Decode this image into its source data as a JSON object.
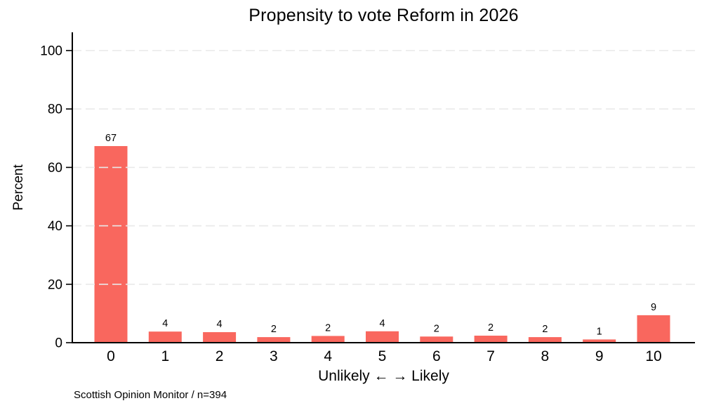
{
  "chart_data": {
    "type": "bar",
    "title": "Propensity to vote Reform in 2026",
    "xlabel": "Unlikely ← → Likely",
    "ylabel": "Percent",
    "note": "Scottish Opinion Monitor / n=394",
    "categories": [
      "0",
      "1",
      "2",
      "3",
      "4",
      "5",
      "6",
      "7",
      "8",
      "9",
      "10"
    ],
    "values": [
      67.3,
      3.8,
      3.6,
      1.9,
      2.3,
      3.9,
      2.1,
      2.4,
      1.9,
      1.1,
      9.4
    ],
    "bar_labels": [
      "67",
      "4",
      "4",
      "2",
      "2",
      "4",
      "2",
      "2",
      "2",
      "1",
      "9"
    ],
    "yticks": [
      0,
      20,
      40,
      60,
      80,
      100
    ],
    "ylim": [
      0,
      105
    ],
    "grid": "horizontal-dashed",
    "legend": "none",
    "bar_color": "#f9675e",
    "gridline_color": "#e9e9e9",
    "axis_color": "#000000",
    "text_color": "#000000"
  }
}
